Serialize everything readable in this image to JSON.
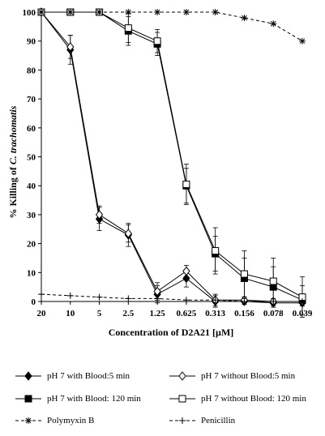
{
  "chart_data": {
    "type": "line",
    "title": "",
    "xlabel": "Concentration of D2A21 [µM]",
    "ylabel": "% Killing of C. trachomatis",
    "ylabel_parts": [
      "% Killing of ",
      "C. trachomatis"
    ],
    "categories": [
      "20",
      "10",
      "5",
      "2.5",
      "1.25",
      "0.625",
      "0.313",
      "0.156",
      "0.078",
      "0.039"
    ],
    "ylim": [
      0,
      100
    ],
    "yticks": [
      0,
      10,
      20,
      30,
      40,
      50,
      60,
      70,
      80,
      90,
      100
    ],
    "grid": false,
    "legend_position": "bottom",
    "series": [
      {
        "name": "pH 7 with Blood:5 min",
        "marker": "filled-diamond",
        "line": "solid",
        "values": [
          100,
          87,
          28.5,
          23,
          2.5,
          8,
          0,
          0,
          -0.5,
          -0.5
        ],
        "errors": [
          0,
          5,
          4,
          4,
          3,
          3,
          2,
          1,
          1,
          1
        ]
      },
      {
        "name": "pH 7 without Blood:5 min",
        "marker": "open-diamond",
        "line": "solid",
        "values": [
          100,
          88,
          30,
          23.5,
          3.5,
          10.5,
          0.5,
          0.5,
          0,
          0
        ],
        "errors": [
          0,
          4,
          3,
          3,
          3,
          2,
          2,
          1,
          1,
          1
        ]
      },
      {
        "name": "pH 7 with Blood: 120 min",
        "marker": "filled-square",
        "line": "solid",
        "values": [
          100,
          100,
          100,
          93.5,
          89,
          40,
          16.5,
          8,
          5,
          0.5
        ],
        "errors": [
          0,
          0,
          0,
          5,
          4,
          6,
          6,
          7,
          7,
          5
        ]
      },
      {
        "name": "pH 7 without Blood: 120 min",
        "marker": "open-square",
        "line": "solid",
        "values": [
          100,
          100,
          100,
          94.5,
          90,
          40.5,
          17.5,
          9.5,
          7,
          1.5
        ],
        "errors": [
          0,
          0,
          0,
          5,
          4,
          7,
          8,
          8,
          8,
          7
        ]
      },
      {
        "name": "Polymyxin B",
        "marker": "asterisk",
        "line": "dashed",
        "values": [
          100,
          100,
          100,
          100,
          100,
          100,
          100,
          98,
          96,
          90
        ],
        "errors": [
          0,
          0,
          0,
          0,
          0,
          0,
          0,
          0,
          0,
          0
        ]
      },
      {
        "name": "Penicillin",
        "marker": "plus",
        "line": "dashed",
        "values": [
          2.5,
          2,
          1.5,
          1,
          1,
          0.5,
          0.5,
          0,
          0,
          0
        ],
        "errors": [
          0,
          0,
          0,
          0,
          0,
          0,
          0,
          0,
          0,
          0
        ]
      }
    ]
  }
}
